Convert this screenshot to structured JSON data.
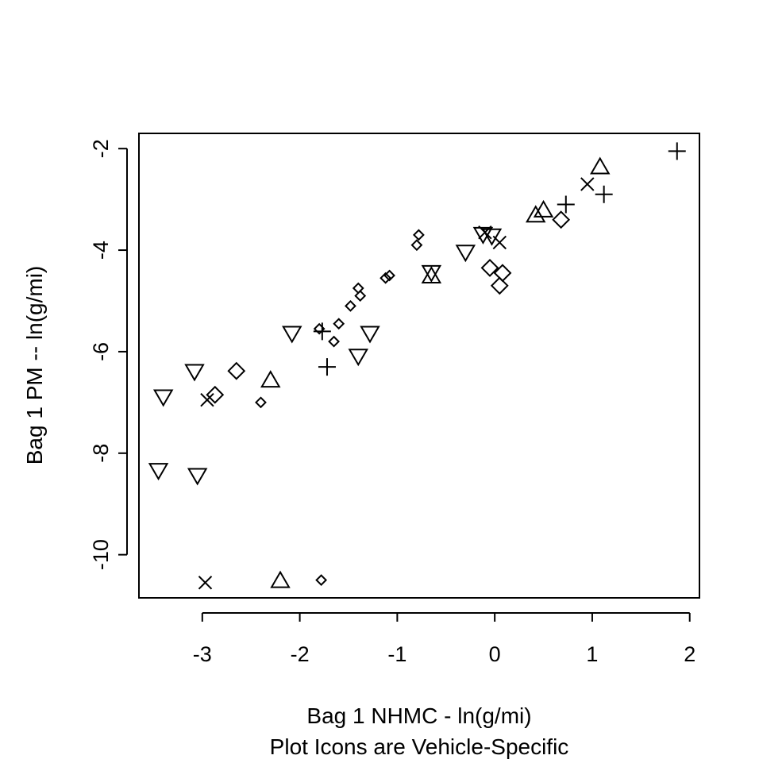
{
  "chart_data": {
    "type": "scatter",
    "title": "",
    "xlabel": "Bag 1 NHMC - ln(g/mi)",
    "xlabel_line2": "Plot Icons are Vehicle-Specific",
    "ylabel": "Bag 1 PM -- ln(g/mi)",
    "xlim": [
      -3.65,
      2.1
    ],
    "ylim": [
      -10.85,
      -1.7
    ],
    "x_ticks": [
      {
        "value": -3,
        "label": "-3"
      },
      {
        "value": -2,
        "label": "-2"
      },
      {
        "value": -1,
        "label": "-1"
      },
      {
        "value": 0,
        "label": "0"
      },
      {
        "value": 1,
        "label": "1"
      },
      {
        "value": 2,
        "label": "2"
      }
    ],
    "y_ticks": [
      {
        "value": -2,
        "label": "-2"
      },
      {
        "value": -4,
        "label": "-4"
      },
      {
        "value": -6,
        "label": "-6"
      },
      {
        "value": -8,
        "label": "-8"
      },
      {
        "value": -10,
        "label": "-10"
      }
    ],
    "grid": false,
    "legend": "none",
    "series": [
      {
        "marker": "triangle-down",
        "points": [
          {
            "x": -3.45,
            "y": -8.35
          },
          {
            "x": -3.4,
            "y": -6.9
          },
          {
            "x": -3.08,
            "y": -6.4
          },
          {
            "x": -3.05,
            "y": -8.45
          },
          {
            "x": -2.08,
            "y": -5.65
          },
          {
            "x": -1.4,
            "y": -6.1
          },
          {
            "x": -1.28,
            "y": -5.65
          },
          {
            "x": -0.65,
            "y": -4.45
          },
          {
            "x": -0.3,
            "y": -4.05
          },
          {
            "x": -0.12,
            "y": -3.7
          },
          {
            "x": -0.03,
            "y": -3.73
          }
        ]
      },
      {
        "marker": "triangle-up",
        "points": [
          {
            "x": -2.3,
            "y": -6.55
          },
          {
            "x": -2.2,
            "y": -10.5
          },
          {
            "x": -0.65,
            "y": -4.5
          },
          {
            "x": 0.42,
            "y": -3.3
          },
          {
            "x": 0.5,
            "y": -3.2
          },
          {
            "x": 1.08,
            "y": -2.35
          }
        ]
      },
      {
        "marker": "diamond",
        "points": [
          {
            "x": -2.87,
            "y": -6.85
          },
          {
            "x": -2.65,
            "y": -6.38
          },
          {
            "x": -0.05,
            "y": -4.35
          },
          {
            "x": 0.05,
            "y": -4.7
          },
          {
            "x": 0.08,
            "y": -4.45
          },
          {
            "x": 0.68,
            "y": -3.4
          }
        ]
      },
      {
        "marker": "small-diamond",
        "points": [
          {
            "x": -2.4,
            "y": -7.0
          },
          {
            "x": -1.8,
            "y": -5.55
          },
          {
            "x": -1.65,
            "y": -5.8
          },
          {
            "x": -1.6,
            "y": -5.45
          },
          {
            "x": -1.48,
            "y": -5.1
          },
          {
            "x": -1.4,
            "y": -4.75
          },
          {
            "x": -1.38,
            "y": -4.9
          },
          {
            "x": -1.12,
            "y": -4.55
          },
          {
            "x": -1.08,
            "y": -4.5
          },
          {
            "x": -0.8,
            "y": -3.9
          },
          {
            "x": -0.78,
            "y": -3.7
          },
          {
            "x": -1.78,
            "y": -10.5
          }
        ]
      },
      {
        "marker": "plus",
        "points": [
          {
            "x": -1.77,
            "y": -5.6
          },
          {
            "x": -1.72,
            "y": -6.3
          },
          {
            "x": 0.73,
            "y": -3.1
          },
          {
            "x": 1.12,
            "y": -2.9
          },
          {
            "x": 1.87,
            "y": -2.05
          }
        ]
      },
      {
        "marker": "cross",
        "points": [
          {
            "x": -2.95,
            "y": -6.95
          },
          {
            "x": -2.97,
            "y": -10.55
          },
          {
            "x": -0.1,
            "y": -3.65
          },
          {
            "x": 0.05,
            "y": -3.85
          },
          {
            "x": 0.95,
            "y": -2.7
          }
        ]
      }
    ]
  }
}
